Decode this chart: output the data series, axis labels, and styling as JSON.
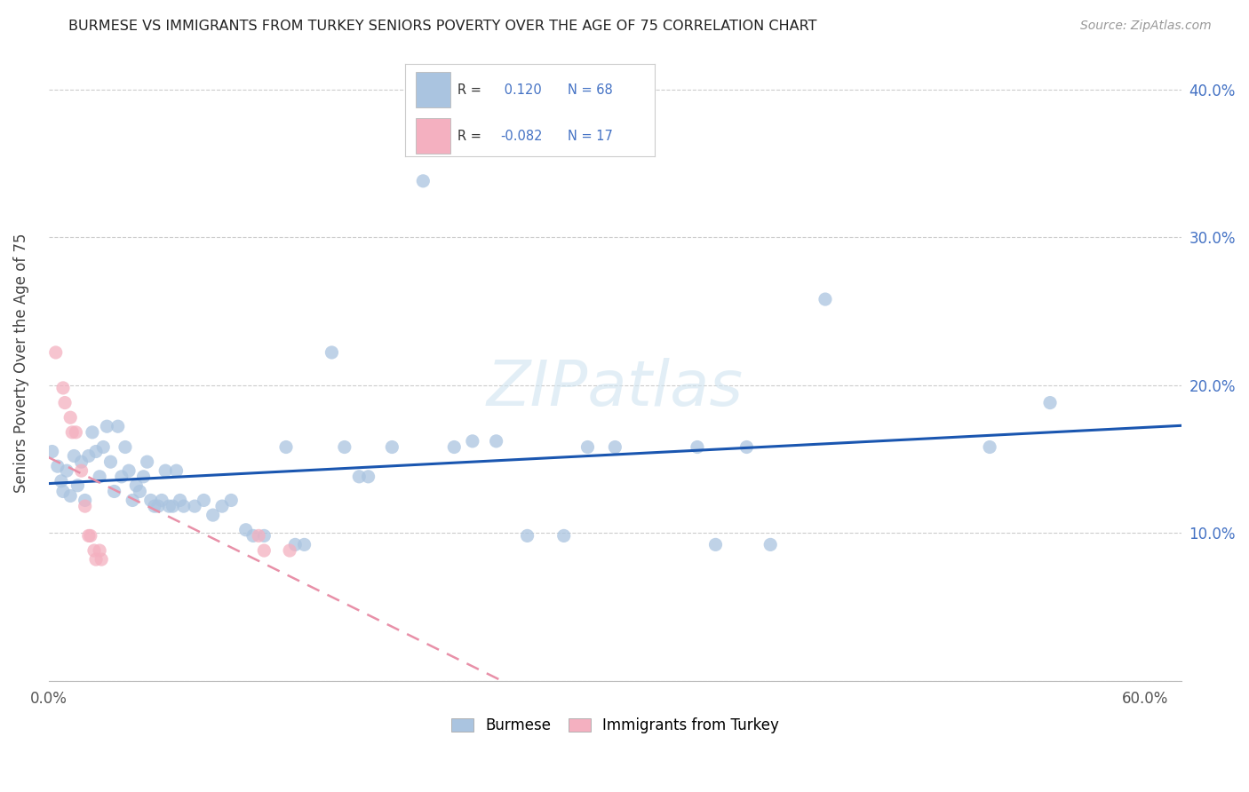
{
  "title": "BURMESE VS IMMIGRANTS FROM TURKEY SENIORS POVERTY OVER THE AGE OF 75 CORRELATION CHART",
  "source": "Source: ZipAtlas.com",
  "ylabel": "Seniors Poverty Over the Age of 75",
  "xlim": [
    0.0,
    0.62
  ],
  "ylim": [
    0.0,
    0.43
  ],
  "xticks": [
    0.0,
    0.1,
    0.2,
    0.3,
    0.4,
    0.5,
    0.6
  ],
  "xticklabels": [
    "0.0%",
    "",
    "",
    "",
    "",
    "",
    "60.0%"
  ],
  "yticks": [
    0.0,
    0.1,
    0.2,
    0.3,
    0.4
  ],
  "burmese_color": "#aac4e0",
  "turkey_color": "#f4b0c0",
  "burmese_line_color": "#1a56b0",
  "turkey_line_color": "#e890a8",
  "R_burmese": 0.12,
  "N_burmese": 68,
  "R_turkey": -0.082,
  "N_turkey": 17,
  "burmese_scatter": [
    [
      0.002,
      0.155
    ],
    [
      0.005,
      0.145
    ],
    [
      0.007,
      0.135
    ],
    [
      0.008,
      0.128
    ],
    [
      0.01,
      0.142
    ],
    [
      0.012,
      0.125
    ],
    [
      0.014,
      0.152
    ],
    [
      0.016,
      0.132
    ],
    [
      0.018,
      0.148
    ],
    [
      0.02,
      0.122
    ],
    [
      0.022,
      0.152
    ],
    [
      0.024,
      0.168
    ],
    [
      0.026,
      0.155
    ],
    [
      0.028,
      0.138
    ],
    [
      0.03,
      0.158
    ],
    [
      0.032,
      0.172
    ],
    [
      0.034,
      0.148
    ],
    [
      0.036,
      0.128
    ],
    [
      0.038,
      0.172
    ],
    [
      0.04,
      0.138
    ],
    [
      0.042,
      0.158
    ],
    [
      0.044,
      0.142
    ],
    [
      0.046,
      0.122
    ],
    [
      0.048,
      0.132
    ],
    [
      0.05,
      0.128
    ],
    [
      0.052,
      0.138
    ],
    [
      0.054,
      0.148
    ],
    [
      0.056,
      0.122
    ],
    [
      0.058,
      0.118
    ],
    [
      0.06,
      0.118
    ],
    [
      0.062,
      0.122
    ],
    [
      0.064,
      0.142
    ],
    [
      0.066,
      0.118
    ],
    [
      0.068,
      0.118
    ],
    [
      0.07,
      0.142
    ],
    [
      0.072,
      0.122
    ],
    [
      0.074,
      0.118
    ],
    [
      0.08,
      0.118
    ],
    [
      0.085,
      0.122
    ],
    [
      0.09,
      0.112
    ],
    [
      0.095,
      0.118
    ],
    [
      0.1,
      0.122
    ],
    [
      0.108,
      0.102
    ],
    [
      0.112,
      0.098
    ],
    [
      0.118,
      0.098
    ],
    [
      0.13,
      0.158
    ],
    [
      0.135,
      0.092
    ],
    [
      0.14,
      0.092
    ],
    [
      0.155,
      0.222
    ],
    [
      0.162,
      0.158
    ],
    [
      0.17,
      0.138
    ],
    [
      0.175,
      0.138
    ],
    [
      0.188,
      0.158
    ],
    [
      0.205,
      0.338
    ],
    [
      0.222,
      0.158
    ],
    [
      0.232,
      0.162
    ],
    [
      0.245,
      0.162
    ],
    [
      0.262,
      0.098
    ],
    [
      0.282,
      0.098
    ],
    [
      0.295,
      0.158
    ],
    [
      0.31,
      0.158
    ],
    [
      0.355,
      0.158
    ],
    [
      0.365,
      0.092
    ],
    [
      0.382,
      0.158
    ],
    [
      0.395,
      0.092
    ],
    [
      0.425,
      0.258
    ],
    [
      0.515,
      0.158
    ],
    [
      0.548,
      0.188
    ]
  ],
  "turkey_scatter": [
    [
      0.004,
      0.222
    ],
    [
      0.008,
      0.198
    ],
    [
      0.009,
      0.188
    ],
    [
      0.012,
      0.178
    ],
    [
      0.013,
      0.168
    ],
    [
      0.015,
      0.168
    ],
    [
      0.018,
      0.142
    ],
    [
      0.02,
      0.118
    ],
    [
      0.022,
      0.098
    ],
    [
      0.023,
      0.098
    ],
    [
      0.025,
      0.088
    ],
    [
      0.026,
      0.082
    ],
    [
      0.028,
      0.088
    ],
    [
      0.029,
      0.082
    ],
    [
      0.115,
      0.098
    ],
    [
      0.118,
      0.088
    ],
    [
      0.132,
      0.088
    ]
  ],
  "background_color": "#ffffff",
  "grid_color": "#cccccc"
}
